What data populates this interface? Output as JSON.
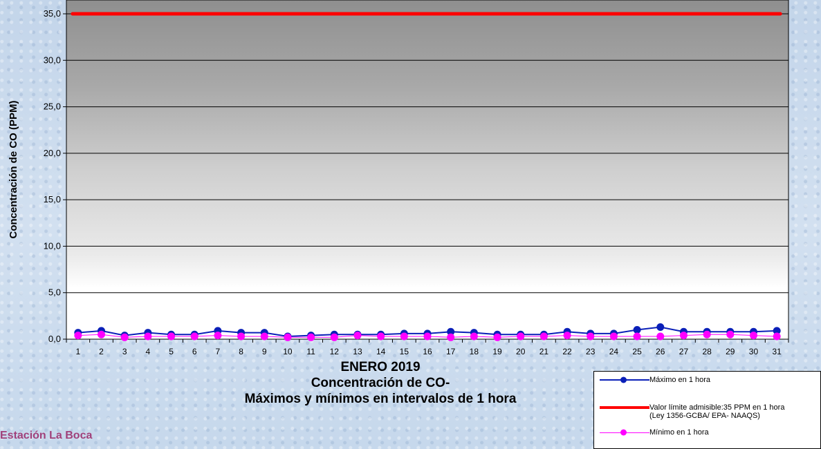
{
  "chart_data": {
    "type": "line",
    "title": "ENERO 2019",
    "subtitle_lines": [
      "Concentración de CO-",
      "Máximos y mínimos en intervalos de 1 hora"
    ],
    "ylabel": "Concentración de CO (PPM)",
    "xlabel": "",
    "ylim": [
      0,
      35
    ],
    "y_ticks": [
      "0,0",
      "5,0",
      "10,0",
      "15,0",
      "20,0",
      "25,0",
      "30,0",
      "35,0"
    ],
    "y_tick_values": [
      0,
      5,
      10,
      15,
      20,
      25,
      30,
      35
    ],
    "x": [
      1,
      2,
      3,
      4,
      5,
      6,
      7,
      8,
      9,
      10,
      11,
      12,
      13,
      14,
      15,
      16,
      17,
      18,
      19,
      20,
      21,
      22,
      23,
      24,
      25,
      26,
      27,
      28,
      29,
      30,
      31
    ],
    "x_labels": [
      "1",
      "2",
      "3",
      "4",
      "5",
      "6",
      "7",
      "8",
      "9",
      "10",
      "11",
      "12",
      "13",
      "14",
      "15",
      "16",
      "17",
      "18",
      "19",
      "20",
      "21",
      "22",
      "23",
      "24",
      "25",
      "26",
      "27",
      "28",
      "29",
      "30",
      "31"
    ],
    "grid": true,
    "legend_position": "bottom-right",
    "series": [
      {
        "name": "Máximo en 1 hora",
        "color": "#0a1fb8",
        "marker": true,
        "values": [
          0.7,
          0.9,
          0.4,
          0.7,
          0.5,
          0.5,
          0.9,
          0.7,
          0.7,
          0.3,
          0.4,
          0.5,
          0.5,
          0.5,
          0.6,
          0.6,
          0.8,
          0.7,
          0.5,
          0.5,
          0.5,
          0.8,
          0.6,
          0.6,
          1.0,
          1.3,
          0.8,
          0.8,
          0.8,
          0.8,
          0.9
        ]
      },
      {
        "name": "Valor límite admisible:35 PPM en 1 hora (Ley 1356-GCBA/ EPA- NAAQS)",
        "name_line1": "Valor límite admisible:35 PPM en 1 hora",
        "name_line2": "(Ley 1356-GCBA/ EPA- NAAQS)",
        "color": "#ff0000",
        "marker": false,
        "values": [
          35,
          35,
          35,
          35,
          35,
          35,
          35,
          35,
          35,
          35,
          35,
          35,
          35,
          35,
          35,
          35,
          35,
          35,
          35,
          35,
          35,
          35,
          35,
          35,
          35,
          35,
          35,
          35,
          35,
          35,
          35
        ]
      },
      {
        "name": "Mínimo en 1 hora",
        "color": "#ff00ff",
        "marker": true,
        "values": [
          0.4,
          0.5,
          0.2,
          0.3,
          0.3,
          0.3,
          0.4,
          0.3,
          0.3,
          0.2,
          0.2,
          0.2,
          0.4,
          0.3,
          0.3,
          0.3,
          0.2,
          0.3,
          0.2,
          0.3,
          0.3,
          0.4,
          0.3,
          0.3,
          0.3,
          0.3,
          0.4,
          0.5,
          0.5,
          0.4,
          0.3
        ]
      }
    ]
  },
  "station_label": "Estación La Boca"
}
